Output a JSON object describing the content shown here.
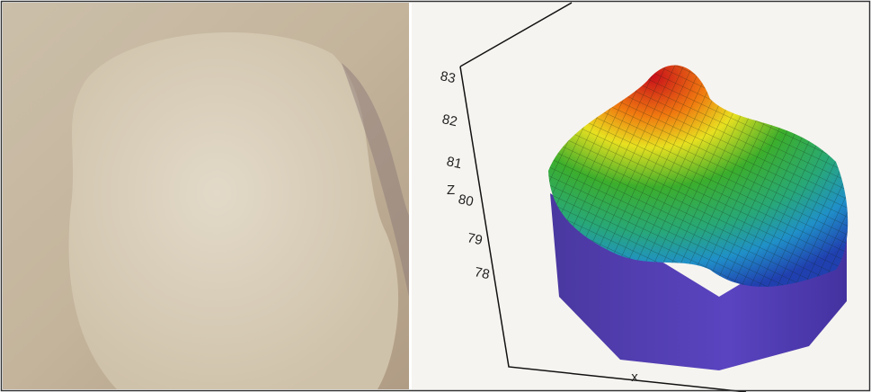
{
  "plot": {
    "z_label": "Z",
    "x_label": "x",
    "z_ticks": [
      83,
      82,
      81,
      80,
      79,
      78
    ]
  }
}
